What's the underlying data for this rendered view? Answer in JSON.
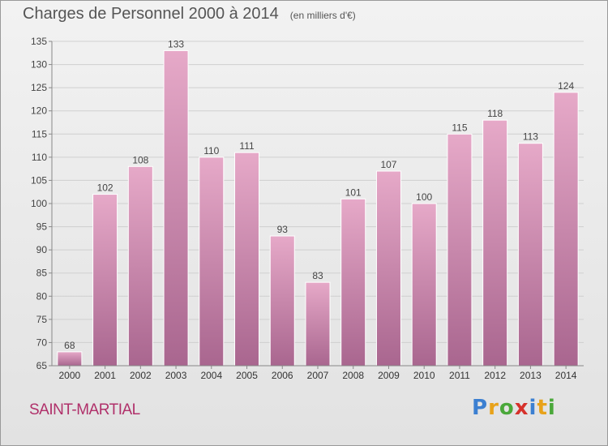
{
  "title": "Charges de Personnel 2000 à 2014",
  "unit_label": "(en milliers d'€)",
  "commune": "SAINT-MARTIAL",
  "logo": {
    "letters": [
      "P",
      "r",
      "o",
      "x",
      "i",
      "t",
      "i"
    ],
    "colors": [
      "#3b7fd1",
      "#e8a21a",
      "#4aa83a",
      "#d6312b",
      "#3b7fd1",
      "#e8a21a",
      "#4aa83a"
    ]
  },
  "colors": {
    "bar_top": "#e6a9c8",
    "bar_bottom": "#a9668f",
    "title": "#555555",
    "commune": "#b0306a"
  },
  "chart_data": {
    "type": "bar",
    "categories": [
      "2000",
      "2001",
      "2002",
      "2003",
      "2004",
      "2005",
      "2006",
      "2007",
      "2008",
      "2009",
      "2010",
      "2011",
      "2012",
      "2013",
      "2014"
    ],
    "values": [
      68,
      102,
      108,
      133,
      110,
      111,
      93,
      83,
      101,
      107,
      100,
      115,
      118,
      113,
      124
    ],
    "ylim": [
      65,
      135
    ],
    "yticks": [
      65,
      70,
      75,
      80,
      85,
      90,
      95,
      100,
      105,
      110,
      115,
      120,
      125,
      130,
      135
    ],
    "grid": true,
    "xlabel": "",
    "ylabel": ""
  }
}
